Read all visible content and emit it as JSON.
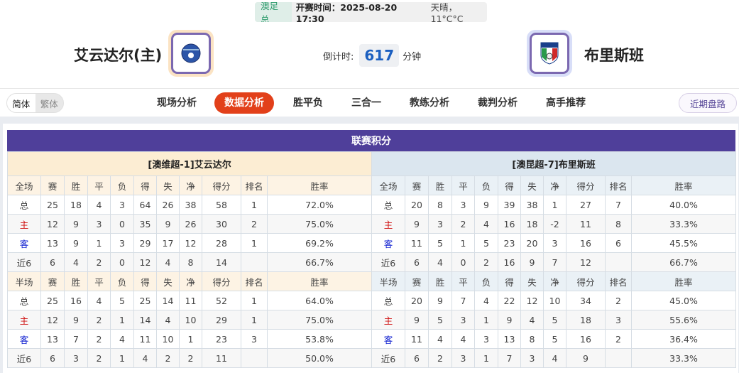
{
  "header": {
    "league": "澳足总",
    "kickoff": "开赛时间：2025-08-20 17:30",
    "weather": "天晴，11°C°C",
    "home_team": "艾云达尔(主)",
    "away_team": "布里斯班",
    "countdown_label": "倒计时:",
    "countdown_value": "617",
    "countdown_unit": "分钟"
  },
  "nav": {
    "lang": [
      "简体",
      "繁体"
    ],
    "tabs": [
      "现场分析",
      "数据分析",
      "胜平负",
      "三合一",
      "教练分析",
      "裁判分析",
      "高手推荐"
    ],
    "active_tab": "数据分析",
    "recent": "近期盘路"
  },
  "section_title": "联赛积分",
  "columns_full": [
    "全场",
    "赛",
    "胜",
    "平",
    "负",
    "得",
    "失",
    "净",
    "得分",
    "排名",
    "胜率"
  ],
  "columns_half": [
    "半场",
    "赛",
    "胜",
    "平",
    "负",
    "得",
    "失",
    "净",
    "得分",
    "排名",
    "胜率"
  ],
  "home_table": {
    "title": "[澳维超-1]艾云达尔",
    "full": [
      [
        "总",
        "25",
        "18",
        "4",
        "3",
        "64",
        "26",
        "38",
        "58",
        "1",
        "72.0%"
      ],
      [
        "主",
        "12",
        "9",
        "3",
        "0",
        "35",
        "9",
        "26",
        "30",
        "2",
        "75.0%"
      ],
      [
        "客",
        "13",
        "9",
        "1",
        "3",
        "29",
        "17",
        "12",
        "28",
        "1",
        "69.2%"
      ],
      [
        "近6",
        "6",
        "4",
        "2",
        "0",
        "12",
        "4",
        "8",
        "14",
        "",
        "66.7%"
      ]
    ],
    "half": [
      [
        "总",
        "25",
        "16",
        "4",
        "5",
        "25",
        "14",
        "11",
        "52",
        "1",
        "64.0%"
      ],
      [
        "主",
        "12",
        "9",
        "2",
        "1",
        "14",
        "4",
        "10",
        "29",
        "1",
        "75.0%"
      ],
      [
        "客",
        "13",
        "7",
        "2",
        "4",
        "11",
        "10",
        "1",
        "23",
        "3",
        "53.8%"
      ],
      [
        "近6",
        "6",
        "3",
        "2",
        "1",
        "4",
        "2",
        "2",
        "11",
        "",
        "50.0%"
      ]
    ]
  },
  "away_table": {
    "title": "[澳昆超-7]布里斯班",
    "full": [
      [
        "总",
        "20",
        "8",
        "3",
        "9",
        "39",
        "38",
        "1",
        "27",
        "7",
        "40.0%"
      ],
      [
        "主",
        "9",
        "3",
        "2",
        "4",
        "16",
        "18",
        "-2",
        "11",
        "8",
        "33.3%"
      ],
      [
        "客",
        "11",
        "5",
        "1",
        "5",
        "23",
        "20",
        "3",
        "16",
        "6",
        "45.5%"
      ],
      [
        "近6",
        "6",
        "4",
        "0",
        "2",
        "16",
        "9",
        "7",
        "12",
        "",
        "66.7%"
      ]
    ],
    "half": [
      [
        "总",
        "20",
        "9",
        "7",
        "4",
        "22",
        "12",
        "10",
        "34",
        "2",
        "45.0%"
      ],
      [
        "主",
        "9",
        "5",
        "3",
        "1",
        "9",
        "4",
        "5",
        "18",
        "3",
        "55.6%"
      ],
      [
        "客",
        "11",
        "4",
        "4",
        "3",
        "13",
        "8",
        "5",
        "16",
        "2",
        "36.4%"
      ],
      [
        "近6",
        "6",
        "2",
        "3",
        "1",
        "7",
        "3",
        "4",
        "9",
        "",
        "33.3%"
      ]
    ]
  },
  "colors": {
    "title_bar": "#4f3f9a",
    "active_tab": "#e2401a",
    "home_label": "#d01010",
    "away_label": "#1020d0",
    "countdown": "#1b5fc0"
  }
}
